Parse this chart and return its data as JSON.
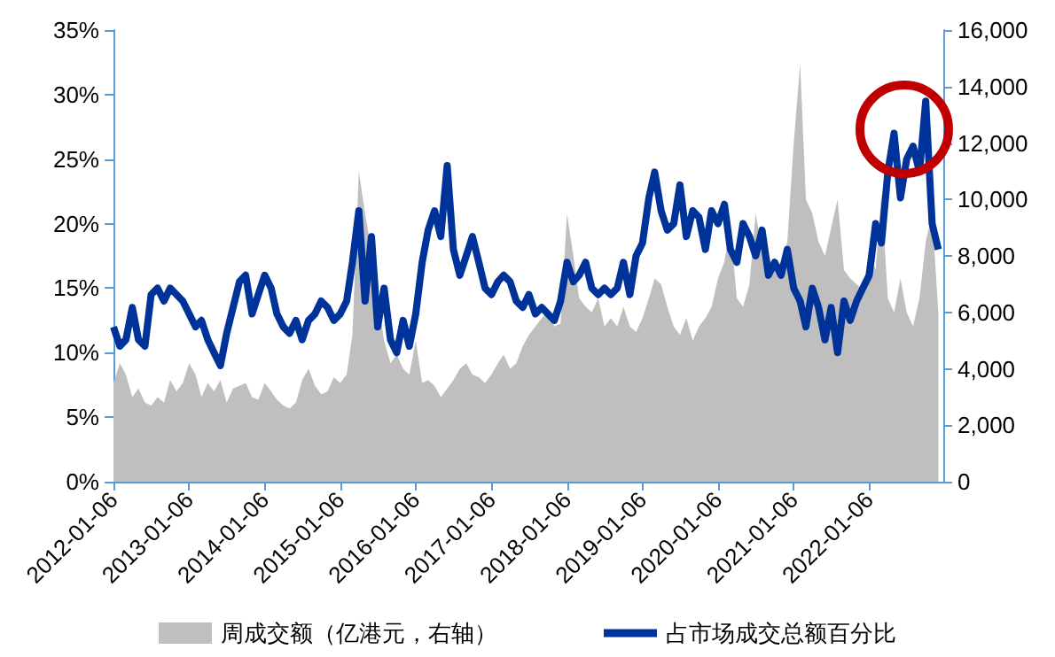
{
  "chart_data": {
    "type": "line",
    "x": [
      "2012-01-06",
      "2012-02-06",
      "2012-03-06",
      "2012-04-06",
      "2012-05-06",
      "2012-06-06",
      "2012-07-06",
      "2012-08-06",
      "2012-09-06",
      "2012-10-06",
      "2012-11-06",
      "2012-12-06",
      "2013-01-06",
      "2013-02-06",
      "2013-03-06",
      "2013-04-06",
      "2013-05-06",
      "2013-06-06",
      "2013-07-06",
      "2013-08-06",
      "2013-09-06",
      "2013-10-06",
      "2013-11-06",
      "2013-12-06",
      "2014-01-06",
      "2014-02-06",
      "2014-03-06",
      "2014-04-06",
      "2014-05-06",
      "2014-06-06",
      "2014-07-06",
      "2014-08-06",
      "2014-09-06",
      "2014-10-06",
      "2014-11-06",
      "2014-12-06",
      "2015-01-06",
      "2015-02-06",
      "2015-03-06",
      "2015-04-06",
      "2015-05-06",
      "2015-06-06",
      "2015-07-06",
      "2015-08-06",
      "2015-09-06",
      "2015-10-06",
      "2015-11-06",
      "2015-12-06",
      "2016-01-06",
      "2016-02-06",
      "2016-03-06",
      "2016-04-06",
      "2016-05-06",
      "2016-06-06",
      "2016-07-06",
      "2016-08-06",
      "2016-09-06",
      "2016-10-06",
      "2016-11-06",
      "2016-12-06",
      "2017-01-06",
      "2017-02-06",
      "2017-03-06",
      "2017-04-06",
      "2017-05-06",
      "2017-06-06",
      "2017-07-06",
      "2017-08-06",
      "2017-09-06",
      "2017-10-06",
      "2017-11-06",
      "2017-12-06",
      "2018-01-06",
      "2018-02-06",
      "2018-03-06",
      "2018-04-06",
      "2018-05-06",
      "2018-06-06",
      "2018-07-06",
      "2018-08-06",
      "2018-09-06",
      "2018-10-06",
      "2018-11-06",
      "2018-12-06",
      "2019-01-06",
      "2019-02-06",
      "2019-03-06",
      "2019-04-06",
      "2019-05-06",
      "2019-06-06",
      "2019-07-06",
      "2019-08-06",
      "2019-09-06",
      "2019-10-06",
      "2019-11-06",
      "2019-12-06",
      "2020-01-06",
      "2020-02-06",
      "2020-03-06",
      "2020-04-06",
      "2020-05-06",
      "2020-06-06",
      "2020-07-06",
      "2020-08-06",
      "2020-09-06",
      "2020-10-06",
      "2020-11-06",
      "2020-12-06",
      "2021-01-06",
      "2021-02-06",
      "2021-03-06",
      "2021-04-06",
      "2021-05-06",
      "2021-06-06",
      "2021-07-06",
      "2021-08-06",
      "2021-09-06",
      "2021-10-06",
      "2021-11-06",
      "2021-12-06",
      "2022-01-06",
      "2022-02-06",
      "2022-03-06",
      "2022-04-06",
      "2022-05-06",
      "2022-06-06",
      "2022-07-06",
      "2022-08-06",
      "2022-09-06",
      "2022-10-06",
      "2022-11-06",
      "2022-12-06"
    ],
    "series": [
      {
        "name": "周成交额（亿港元，右轴）",
        "type": "area",
        "axis": "y2",
        "color": "#bfbfbf",
        "values": [
          3500,
          4200,
          3800,
          3000,
          3300,
          2800,
          2700,
          3000,
          2800,
          3600,
          3200,
          3500,
          4200,
          3800,
          3000,
          3500,
          3200,
          3600,
          2800,
          3300,
          3400,
          3500,
          3000,
          2900,
          3500,
          3200,
          2900,
          2700,
          2600,
          2800,
          3600,
          4000,
          3400,
          3100,
          3200,
          3700,
          3500,
          3800,
          5200,
          11000,
          9500,
          8200,
          6500,
          5000,
          4200,
          4500,
          4000,
          3800,
          5000,
          3500,
          3600,
          3400,
          3000,
          3300,
          3600,
          4000,
          4200,
          3800,
          3700,
          3500,
          3800,
          4200,
          4500,
          4000,
          4200,
          4800,
          5200,
          5500,
          5800,
          6000,
          5500,
          5600,
          9500,
          8000,
          6500,
          6200,
          6000,
          6500,
          5500,
          5800,
          5500,
          6200,
          5500,
          5300,
          5800,
          6500,
          7200,
          7000,
          6200,
          5500,
          5200,
          5800,
          5000,
          5500,
          5800,
          6200,
          7200,
          7800,
          9000,
          6500,
          6200,
          7000,
          9500,
          8200,
          8000,
          7500,
          7800,
          8500,
          12000,
          14800,
          10000,
          9500,
          8500,
          8000,
          9000,
          10000,
          7500,
          7200,
          7000,
          6800,
          8200,
          7500,
          10200,
          6500,
          6000,
          7200,
          6000,
          5500,
          6500,
          8500,
          9500,
          6000
        ]
      },
      {
        "name": "占市场成交总额百分比",
        "axis": "y",
        "color": "#003399",
        "values": [
          12,
          10.5,
          11,
          13.5,
          11,
          10.5,
          14.5,
          15,
          14,
          15,
          14.5,
          14,
          13,
          12,
          12.5,
          11,
          10,
          9,
          11.5,
          13.5,
          15.5,
          16,
          13,
          14.5,
          16,
          15,
          13,
          12,
          11.5,
          12.5,
          11,
          12.5,
          13,
          14,
          13.5,
          12.5,
          13,
          14,
          17,
          21,
          14,
          19,
          12,
          15,
          11,
          10,
          12.5,
          10.5,
          13,
          17,
          19.5,
          21,
          19,
          24.5,
          18,
          16,
          17.5,
          19,
          17,
          15,
          14.5,
          15.5,
          16,
          15.5,
          14,
          13.5,
          14.5,
          13,
          13.5,
          13,
          12.5,
          14,
          17,
          15.5,
          16,
          17,
          15,
          14.5,
          15,
          14.5,
          15,
          17,
          14.5,
          17.5,
          18.5,
          22,
          24,
          21,
          19.5,
          20,
          23,
          19,
          21,
          20.5,
          18,
          21,
          20,
          21.5,
          18,
          17,
          20,
          19,
          17.5,
          19.5,
          16,
          17,
          16,
          18,
          15,
          14,
          12,
          15,
          13.5,
          11,
          13.5,
          10,
          14,
          12.5,
          14,
          15,
          16,
          20,
          18.5,
          24,
          27,
          22,
          25,
          26,
          24,
          29.5,
          20,
          18
        ]
      }
    ],
    "xlim": [
      "2012-01-06",
      "2022-12-30"
    ],
    "xticks": [
      "2012-01-06",
      "2013-01-06",
      "2014-01-06",
      "2015-01-06",
      "2016-01-06",
      "2017-01-06",
      "2018-01-06",
      "2019-01-06",
      "2020-01-06",
      "2021-01-06",
      "2022-01-06"
    ],
    "ylim": [
      0,
      35
    ],
    "yticks": [
      {
        "value": 0,
        "label": "0%"
      },
      {
        "value": 5,
        "label": "5%"
      },
      {
        "value": 10,
        "label": "10%"
      },
      {
        "value": 15,
        "label": "15%"
      },
      {
        "value": 20,
        "label": "20%"
      },
      {
        "value": 25,
        "label": "25%"
      },
      {
        "value": 30,
        "label": "30%"
      },
      {
        "value": 35,
        "label": "35%"
      }
    ],
    "y2lim": [
      0,
      16000
    ],
    "y2ticks": [
      0,
      {
        "value": 2000,
        "label": "2,000"
      },
      {
        "value": 4000,
        "label": "4,000"
      },
      {
        "value": 6000,
        "label": "6,000"
      },
      {
        "value": 8000,
        "label": "8,000"
      },
      {
        "value": 10000,
        "label": "10,000"
      },
      {
        "value": 12000,
        "label": "12,000"
      },
      {
        "value": 14000,
        "label": "14,000"
      },
      {
        "value": 16000,
        "label": "16,000"
      }
    ],
    "grid": false,
    "legend": "bottom",
    "marker": "none",
    "line_style": "solid"
  }
}
